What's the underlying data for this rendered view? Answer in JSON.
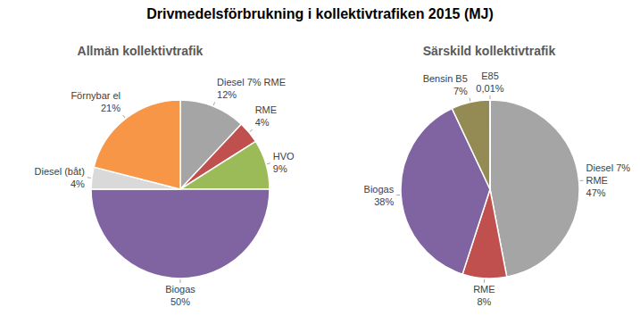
{
  "title": "Drivmedelsförbrukning i kollektivtrafiken 2015 (MJ)",
  "chart_data": [
    {
      "type": "pie",
      "title": "Allmän kollektivtrafik",
      "categories": [
        "Diesel 7% RME",
        "RME",
        "HVO",
        "Biogas",
        "Diesel (båt)",
        "Förnybar el"
      ],
      "values": [
        12,
        4,
        9,
        50,
        4,
        21
      ],
      "value_labels": [
        "12%",
        "4%",
        "9%",
        "50%",
        "4%",
        "21%"
      ],
      "colors": [
        "#a5a5a5",
        "#c0504d",
        "#9bbb59",
        "#8064a2",
        "#d9d9d9",
        "#f79646"
      ],
      "data_labels": true
    },
    {
      "type": "pie",
      "title": "Särskild kollektivtrafik",
      "categories": [
        "Diesel 7% RME",
        "RME",
        "Biogas",
        "Bensin B5",
        "E85"
      ],
      "values": [
        47,
        8,
        38,
        7,
        0.01
      ],
      "value_labels": [
        "47%",
        "8%",
        "38%",
        "7%",
        "0,01%"
      ],
      "colors": [
        "#a5a5a5",
        "#c0504d",
        "#8064a2",
        "#948a54",
        "#4bacc6"
      ],
      "data_labels": true
    }
  ]
}
